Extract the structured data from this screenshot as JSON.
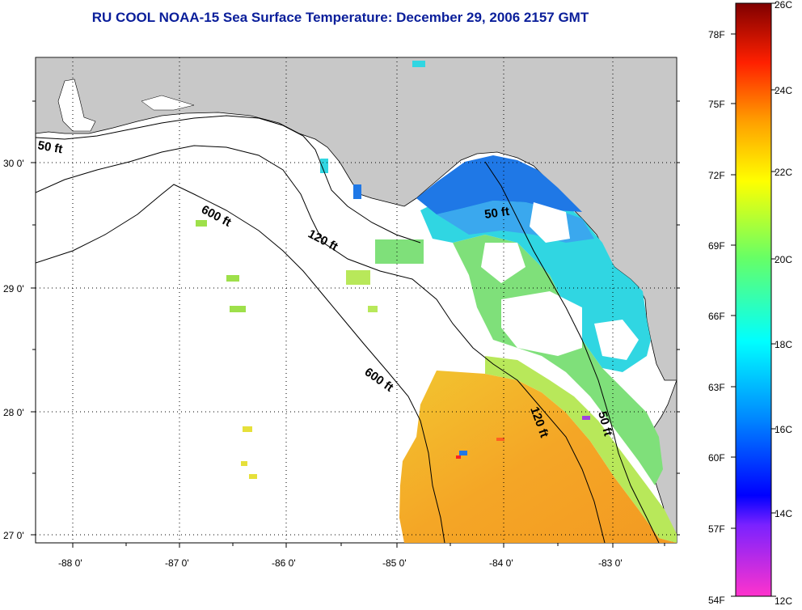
{
  "title": "RU COOL  NOAA-15  Sea Surface Temperature:  December 29, 2006 2157 GMT",
  "map": {
    "longitude_ticks": [
      "-88 0'",
      "-87 0'",
      "-86 0'",
      "-85 0'",
      "-84 0'",
      "-83 0'"
    ],
    "latitude_ticks": [
      "30 0'",
      "29 0'",
      "28 0'",
      "27 0'"
    ],
    "depth_contour_labels": [
      "50 ft",
      "600 ft",
      "120 ft",
      "50 ft",
      "600 ft",
      "120 ft",
      "50 ft"
    ],
    "land_color": "#c8c8c8",
    "colors": {
      "warm": "#f5a623",
      "yellow": "#e6e03a",
      "green": "#7fe07a",
      "cyan": "#2fd6e6",
      "blue": "#1e6fe6"
    }
  },
  "colorbar": {
    "celsius_labels": [
      "26C",
      "24C",
      "22C",
      "20C",
      "18C",
      "16C",
      "14C",
      "12C"
    ],
    "fahrenheit_labels": [
      "78F",
      "75F",
      "72F",
      "69F",
      "66F",
      "63F",
      "60F",
      "57F",
      "54F"
    ],
    "gradient_colors": [
      "#800000",
      "#ff0000",
      "#ff8000",
      "#ffc000",
      "#ffff00",
      "#80ff40",
      "#00ffff",
      "#0080ff",
      "#0000ff",
      "#8000ff",
      "#ff00ff"
    ]
  }
}
